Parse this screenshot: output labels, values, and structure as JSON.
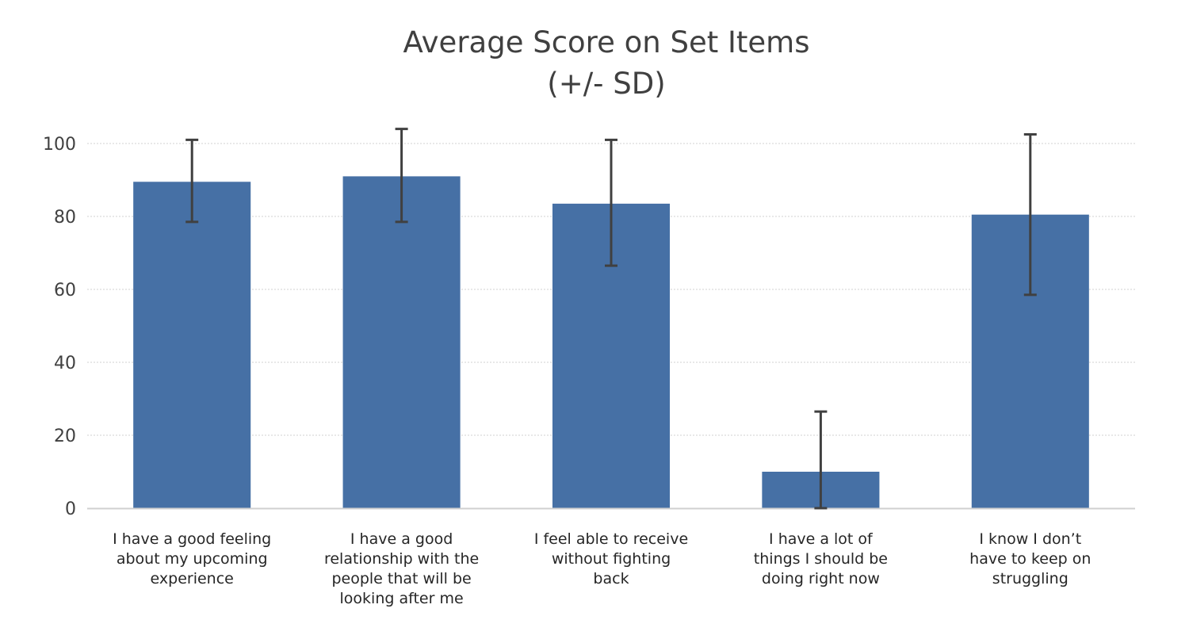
{
  "chart_data": {
    "type": "bar",
    "title": "Average Score on Set Items",
    "subtitle": "(+/- SD)",
    "xlabel": "",
    "ylabel": "",
    "ylim": [
      0,
      100
    ],
    "yticks": [
      "0",
      "20",
      "40",
      "60",
      "80",
      "100"
    ],
    "grid": true,
    "categories": [
      [
        "I have a good feeling",
        "about my upcoming",
        "experience"
      ],
      [
        "I have a good",
        "relationship with the",
        "people that will be",
        "looking after me"
      ],
      [
        "I feel able to receive",
        "without fighting",
        "back"
      ],
      [
        "I have a lot of",
        "things I should be",
        "doing right now"
      ],
      [
        "I know I don’t",
        "have to keep on",
        "struggling"
      ]
    ],
    "values": [
      89.5,
      91,
      83.5,
      10,
      80.5
    ],
    "error_low": [
      78.5,
      78.5,
      66.5,
      0,
      58.5
    ],
    "error_high": [
      101,
      104,
      101,
      26.5,
      102.5
    ],
    "bar_color": "#4670a5",
    "errorbar_color": "#404040",
    "grid_color": "#d0d0d0",
    "axis_color": "#d0d0d0"
  }
}
